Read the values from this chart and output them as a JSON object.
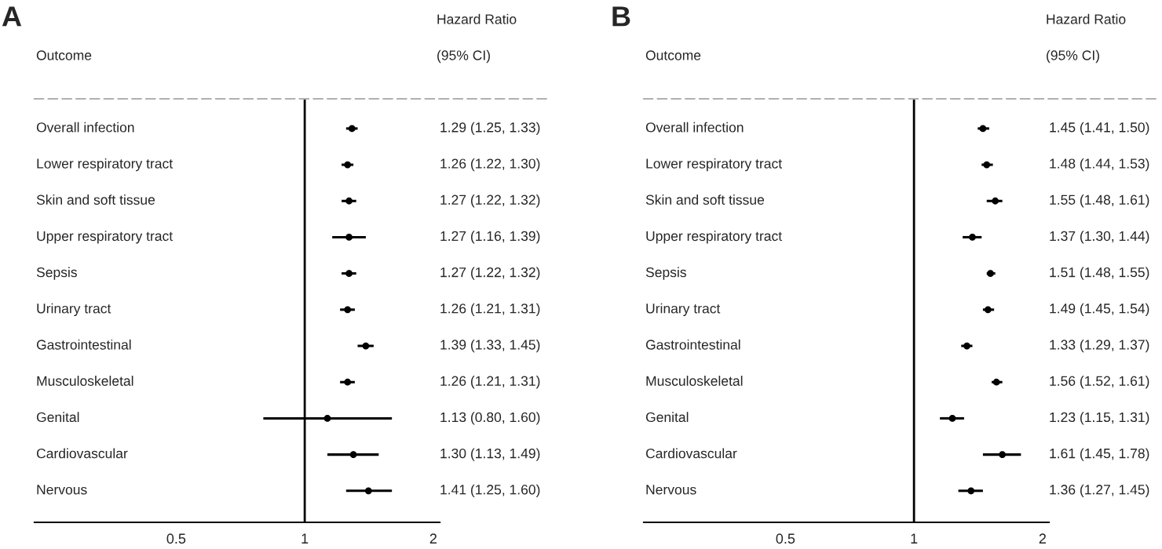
{
  "chart_data": [
    {
      "type": "scatter",
      "orientation": "horizontal",
      "title": "A",
      "annotations": [
        "Hazard Ratio",
        "Outcome",
        "(95% CI)"
      ],
      "categories": [
        "Overall infection",
        "Lower respiratory tract",
        "Skin and soft tissue",
        "Upper respiratory tract",
        "Sepsis",
        "Urinary tract",
        "Gastrointestinal",
        "Musculoskeletal",
        "Genital",
        "Cardiovascular",
        "Nervous"
      ],
      "series": [
        {
          "color": "#000000",
          "values": [
            1.29,
            1.26,
            1.27,
            1.27,
            1.27,
            1.26,
            1.39,
            1.26,
            1.13,
            1.3,
            1.41
          ],
          "errors": [
            [
              1.25,
              1.33
            ],
            [
              1.22,
              1.3
            ],
            [
              1.22,
              1.32
            ],
            [
              1.16,
              1.39
            ],
            [
              1.22,
              1.32
            ],
            [
              1.21,
              1.31
            ],
            [
              1.33,
              1.45
            ],
            [
              1.21,
              1.31
            ],
            [
              0.8,
              1.6
            ],
            [
              1.13,
              1.49
            ],
            [
              1.25,
              1.6
            ]
          ],
          "value_labels": [
            "1.29 (1.25, 1.33)",
            "1.26 (1.22, 1.30)",
            "1.27 (1.22, 1.32)",
            "1.27 (1.16, 1.39)",
            "1.27 (1.22, 1.32)",
            "1.26 (1.21, 1.31)",
            "1.39 (1.33, 1.45)",
            "1.26 (1.21, 1.31)",
            "1.13 (0.80, 1.60)",
            "1.30 (1.13, 1.49)",
            "1.41 (1.25, 1.60)"
          ]
        }
      ],
      "marker": "circle",
      "log": "x",
      "xlim": [
        0.233,
        2.07
      ],
      "xticks": [
        0.5,
        1,
        2
      ],
      "ref_lines": [
        {
          "axis": "x",
          "value": 1,
          "color": "#000000"
        }
      ]
    },
    {
      "type": "scatter",
      "orientation": "horizontal",
      "title": "B",
      "annotations": [
        "Hazard Ratio",
        "Outcome",
        "(95% CI)"
      ],
      "categories": [
        "Overall infection",
        "Lower respiratory tract",
        "Skin and soft tissue",
        "Upper respiratory tract",
        "Sepsis",
        "Urinary tract",
        "Gastrointestinal",
        "Musculoskeletal",
        "Genital",
        "Cardiovascular",
        "Nervous"
      ],
      "series": [
        {
          "color": "#000000",
          "values": [
            1.45,
            1.48,
            1.55,
            1.37,
            1.51,
            1.49,
            1.33,
            1.56,
            1.23,
            1.61,
            1.36
          ],
          "errors": [
            [
              1.41,
              1.5
            ],
            [
              1.44,
              1.53
            ],
            [
              1.48,
              1.61
            ],
            [
              1.3,
              1.44
            ],
            [
              1.48,
              1.55
            ],
            [
              1.45,
              1.54
            ],
            [
              1.29,
              1.37
            ],
            [
              1.52,
              1.61
            ],
            [
              1.15,
              1.31
            ],
            [
              1.45,
              1.78
            ],
            [
              1.27,
              1.45
            ]
          ],
          "value_labels": [
            "1.45 (1.41, 1.50)",
            "1.48 (1.44, 1.53)",
            "1.55 (1.48, 1.61)",
            "1.37 (1.30, 1.44)",
            "1.51 (1.48, 1.55)",
            "1.49 (1.45, 1.54)",
            "1.33 (1.29, 1.37)",
            "1.56 (1.52, 1.61)",
            "1.23 (1.15, 1.31)",
            "1.61 (1.45, 1.78)",
            "1.36 (1.27, 1.45)"
          ]
        }
      ],
      "marker": "circle",
      "log": "x",
      "xlim": [
        0.233,
        2.07
      ],
      "xticks": [
        0.5,
        1,
        2
      ],
      "ref_lines": [
        {
          "axis": "x",
          "value": 1,
          "color": "#000000"
        }
      ]
    }
  ]
}
